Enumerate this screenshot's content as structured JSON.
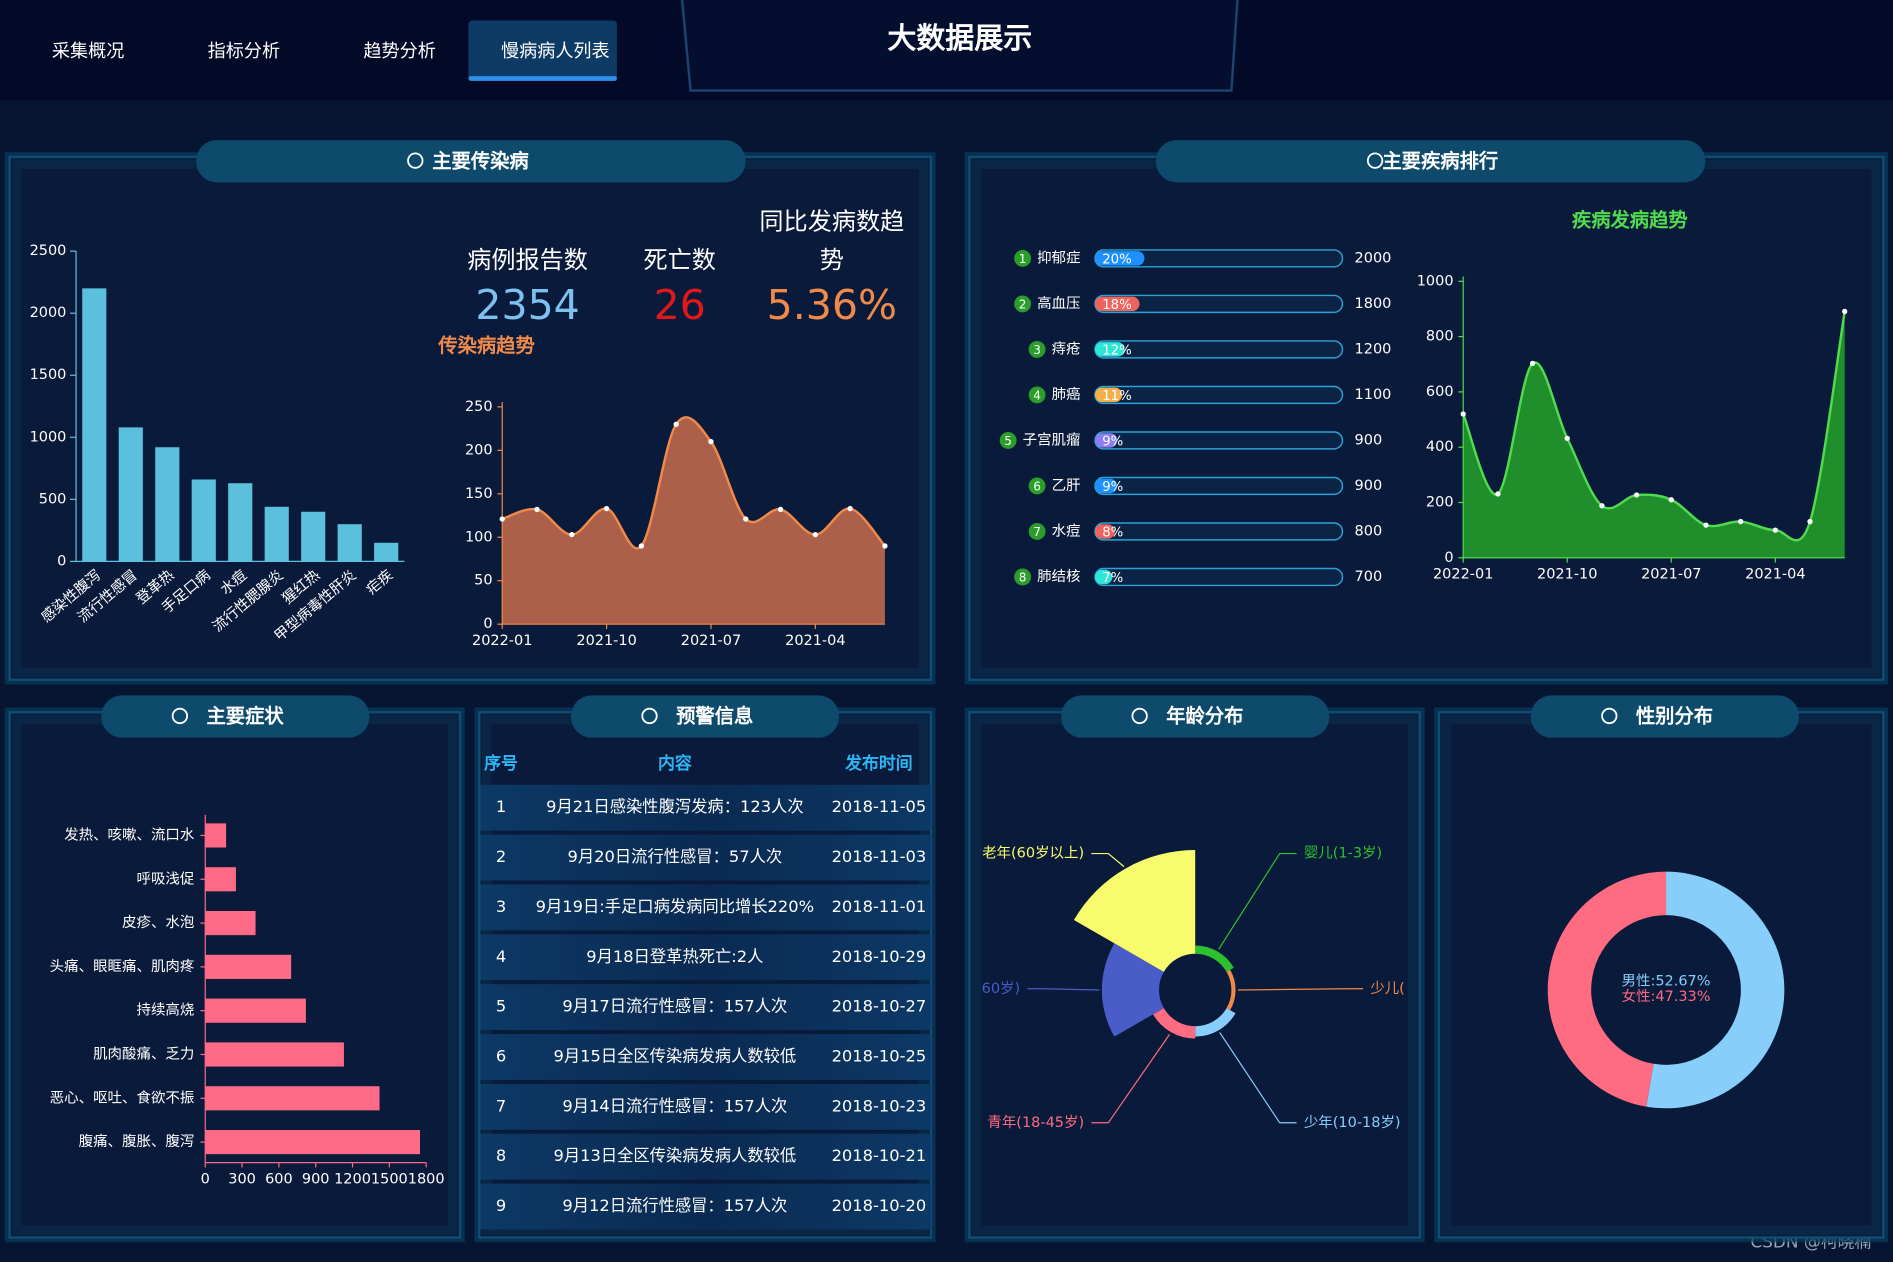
{
  "nav": [
    "采集概况",
    "指标分析",
    "趋势分析",
    "慢病病人列表"
  ],
  "title": "大数据展示",
  "panels": [
    "主要传染病",
    "主要疾病排行",
    "主要症状",
    "预警信息",
    "年龄分布",
    "性别分布"
  ],
  "kpis": [
    {
      "label": "病例报告数",
      "value": "2354"
    },
    {
      "label": "死亡数",
      "value": "26"
    },
    {
      "label": "同比发病数趋势",
      "value": "5.36%"
    }
  ],
  "warning_table": {
    "header": [
      "序号",
      "内容",
      "发布时间"
    ],
    "rows": [
      [
        "1",
        "9月21日感染性腹泻发病：123人次",
        "2018-11-05"
      ],
      [
        "2",
        "9月20日流行性感冒：57人次",
        "2018-11-03"
      ],
      [
        "3",
        "9月19日:手足口病发病同比增长220%",
        "2018-11-01"
      ],
      [
        "4",
        "9月18日登革热死亡:2人",
        "2018-10-29"
      ],
      [
        "5",
        "9月17日流行性感冒：157人次",
        "2018-10-27"
      ],
      [
        "6",
        "9月15日全区传染病发病人数较低",
        "2018-10-25"
      ],
      [
        "7",
        "9月14日流行性感冒：157人次",
        "2018-10-23"
      ],
      [
        "8",
        "9月13日全区传染病发病人数较低",
        "2018-10-21"
      ],
      [
        "9",
        "9月12日流行性感冒：157人次",
        "2018-10-20"
      ]
    ]
  },
  "chart_data": [
    {
      "type": "bar",
      "categories": [
        "感染性腹泻",
        "流行性感冒",
        "登革热",
        "手足口病",
        "水痘",
        "流行性腮腺炎",
        "猩红热",
        "甲型病毒性肝炎",
        "疟疾"
      ],
      "values": [
        2200,
        1080,
        920,
        660,
        630,
        440,
        400,
        300,
        150
      ],
      "color": "#5bc0de",
      "ylim": [
        0,
        2500
      ],
      "yticks": [
        0,
        500,
        1000,
        1500,
        2000,
        2500
      ]
    },
    {
      "type": "area",
      "title": "传染病趋势",
      "categories": [
        "2022-01",
        null,
        null,
        "2021-10",
        null,
        null,
        "2021-07",
        null,
        null,
        "2021-04",
        null,
        null
      ],
      "values": [
        121,
        132,
        103,
        133,
        90,
        230,
        210,
        121,
        132,
        103,
        133,
        90
      ],
      "color": "#f08a4b",
      "fill": "#b5634a",
      "ylim": [
        0,
        250
      ],
      "yticks": [
        0,
        50,
        100,
        150,
        200,
        250
      ]
    },
    {
      "type": "progress",
      "categories": [
        "抑郁症",
        "高血压",
        "痔疮",
        "肺癌",
        "子宫肌瘤",
        "乙肝",
        "水痘",
        "肺结核"
      ],
      "ranks": [
        1,
        2,
        3,
        4,
        5,
        6,
        7,
        8
      ],
      "values": [
        20,
        18,
        12,
        11,
        9,
        9,
        8,
        7
      ],
      "value_labels": [
        "20%",
        "18%",
        "12%",
        "11%",
        "9%",
        "9%",
        "8%",
        "7%"
      ],
      "totals": [
        2000,
        1800,
        1200,
        1100,
        900,
        900,
        800,
        700
      ],
      "colors": [
        "#1e90ff",
        "#f0625c",
        "#2ee6d6",
        "#f5b04b",
        "#8c7cf5",
        "#1e90ff",
        "#f0625c",
        "#2ee6d6"
      ],
      "xlim": [
        0,
        100
      ]
    },
    {
      "type": "area",
      "title": "疾病发病趋势",
      "categories": [
        "2022-01",
        null,
        null,
        "2021-10",
        null,
        null,
        "2021-07",
        null,
        null,
        "2021-04",
        null,
        null
      ],
      "values": [
        520,
        231,
        703,
        432,
        188,
        227,
        210,
        118,
        131,
        100,
        131,
        891
      ],
      "color": "#4fdc4f",
      "fill": "#22962a",
      "ylim": [
        0,
        1000
      ],
      "yticks": [
        0,
        200,
        400,
        600,
        800,
        1000
      ]
    },
    {
      "type": "hbar",
      "categories": [
        "发热、咳嗽、流口水",
        "呼吸浅促",
        "皮疹、水泡",
        "头痛、眼眶痛、肌肉疼",
        "持续高烧",
        "肌肉酸痛、乏力",
        "恶心、呕吐、食欲不振",
        "腹痛、腹胀、腹泻"
      ],
      "values": [
        170,
        250,
        410,
        700,
        820,
        1130,
        1420,
        1750
      ],
      "color": "#ff6b87",
      "xlim": [
        0,
        1800
      ],
      "xticks": [
        0,
        300,
        600,
        900,
        1200,
        1500,
        1800
      ]
    },
    {
      "type": "rose",
      "rose_type": "area",
      "categories": [
        "婴儿(1-3岁)",
        "少儿(",
        "少年(10-18岁)",
        "青年(18-45岁)",
        "60岁)",
        "老年(60岁以上)"
      ],
      "values": [
        8,
        4,
        10,
        12,
        55,
        100
      ],
      "colors": [
        "#2ec02e",
        "#f08a4b",
        "#87cefa",
        "#ff6b81",
        "#4a5cc8",
        "#f8fc6c"
      ]
    },
    {
      "type": "donut",
      "values": [
        52.67,
        47.33
      ],
      "value_labels": [
        "男性:52.67%",
        "女性:47.33%"
      ],
      "colors": [
        "#87cefa",
        "#ff6b81"
      ]
    }
  ],
  "watermark": "CSDN @柯晓楠"
}
